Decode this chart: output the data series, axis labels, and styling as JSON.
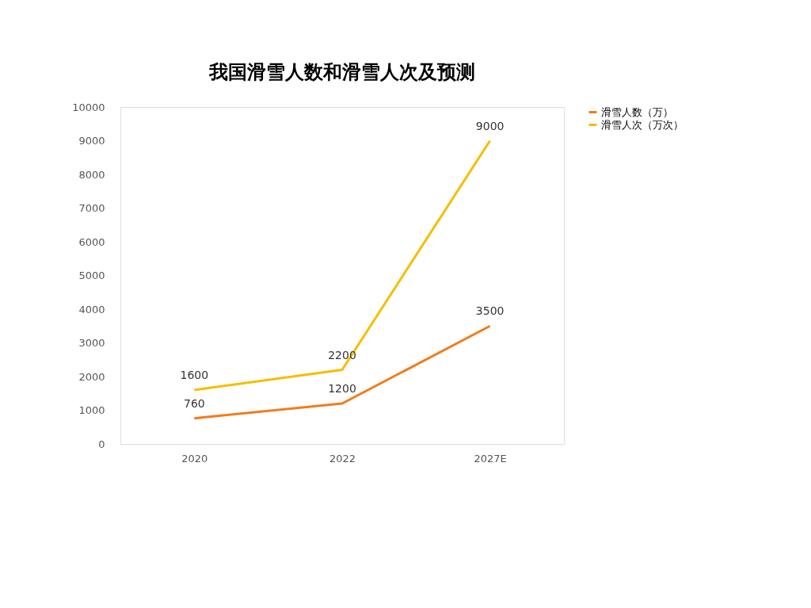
{
  "chart_data": {
    "type": "line",
    "title": "我国滑雪人数和滑雪人次及预测",
    "categories": [
      "2020",
      "2022",
      "2027E"
    ],
    "series": [
      {
        "name": "滑雪人数（万）",
        "color": "#f07d1a",
        "values": [
          760,
          1200,
          3500
        ]
      },
      {
        "name": "滑雪人次（万次）",
        "color": "#f5be00",
        "values": [
          1600,
          2200,
          9000
        ]
      }
    ],
    "ylim": [
      0,
      10000
    ],
    "yticks": [
      0,
      1000,
      2000,
      3000,
      4000,
      5000,
      6000,
      7000,
      8000,
      9000,
      10000
    ],
    "grid": false,
    "legend": "right",
    "data_labels": true,
    "marker": "none",
    "line_style": "solid"
  }
}
